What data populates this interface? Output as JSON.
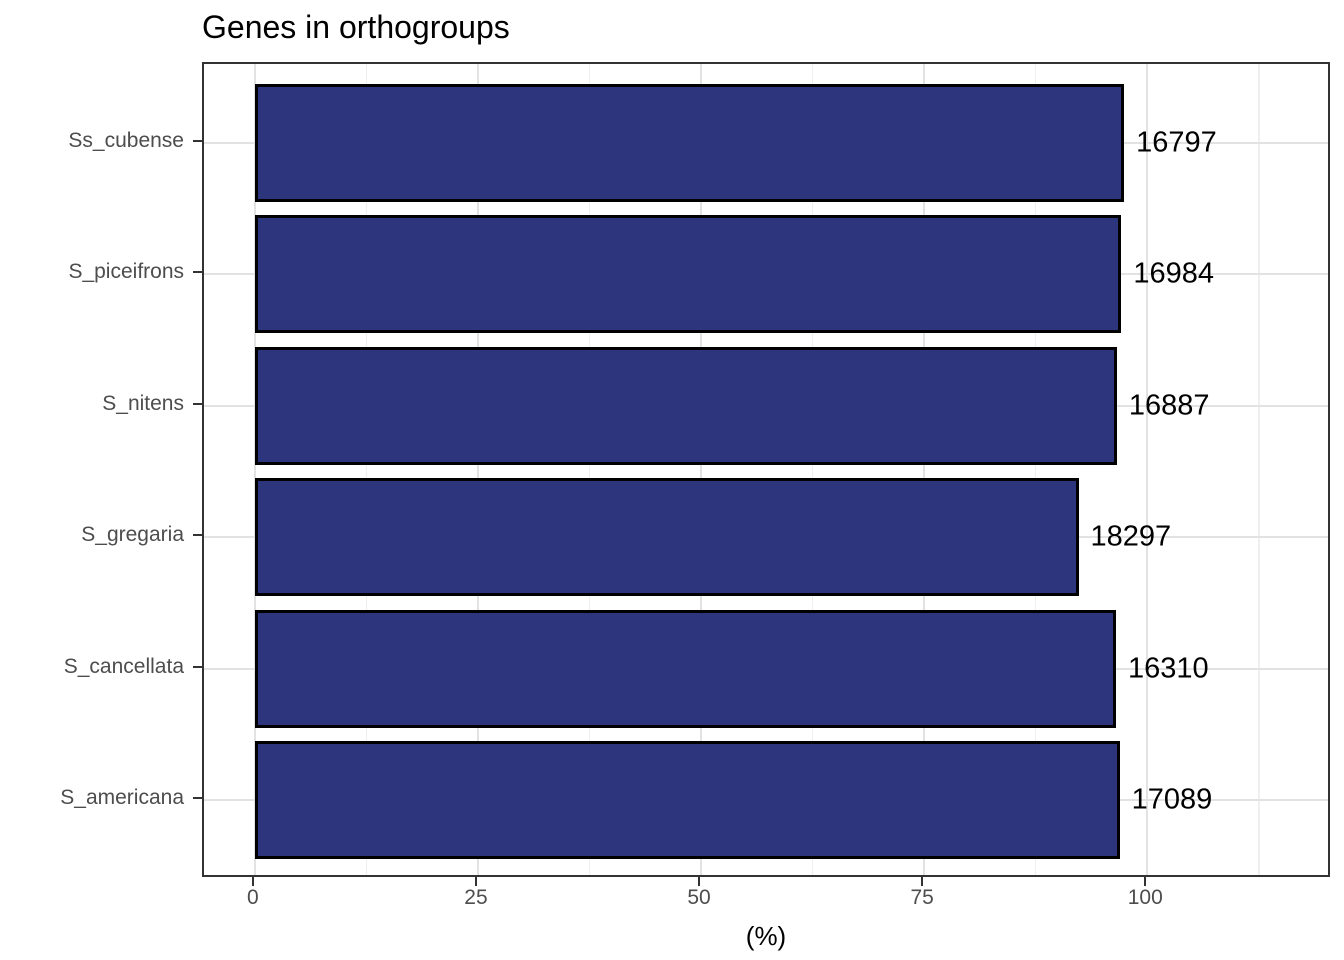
{
  "title": "Genes in orthogroups",
  "x_axis_title": "(%)",
  "chart_data": {
    "type": "bar",
    "orientation": "horizontal",
    "title": "Genes in orthogroups",
    "xlabel": "(%)",
    "ylabel": "",
    "categories": [
      "Ss_cubense",
      "S_piceifrons",
      "S_nitens",
      "S_gregaria",
      "S_cancellata",
      "S_americana"
    ],
    "values_percent": [
      97.4,
      97.1,
      96.6,
      92.3,
      96.5,
      96.9
    ],
    "bar_end_labels": [
      "16797",
      "16984",
      "16887",
      "18297",
      "16310",
      "17089"
    ],
    "gene_counts": [
      16797,
      16984,
      16887,
      18297,
      16310,
      17089
    ],
    "xlim": [
      -5.7,
      120.7
    ],
    "x_major_ticks": [
      0,
      25,
      50,
      75,
      100
    ],
    "x_tick_labels": [
      "0",
      "25",
      "50",
      "75",
      "100"
    ],
    "x_minor_ticks": [
      12.5,
      37.5,
      62.5,
      87.5,
      112.5
    ],
    "grid": "major-and-minor-vertical, major-horizontal",
    "legend_position": "none",
    "colors": {
      "bar_fill": "#2D357D",
      "bar_stroke": "#000000",
      "panel_border": "#333333",
      "grid_major": "#E2E2E2",
      "grid_minor": "#EFEFEF",
      "axis_text": "#4D4D4D",
      "title_text": "#000000",
      "background": "#FFFFFF"
    }
  }
}
